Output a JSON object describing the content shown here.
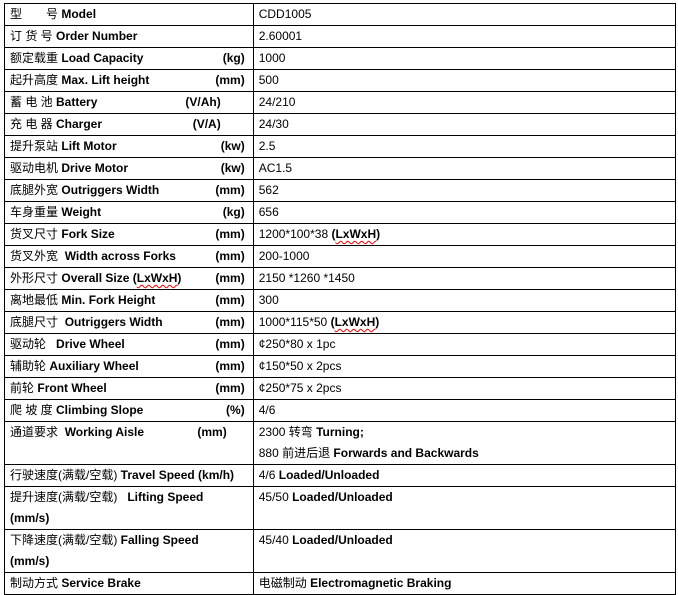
{
  "rows": [
    {
      "cn": "型　　号",
      "en": "Model",
      "unit": "",
      "value": [
        {
          "t": "CDD1005"
        }
      ]
    },
    {
      "cn": "订 货 号",
      "en": "Order Number",
      "unit": "",
      "value": [
        {
          "t": "2.60001"
        }
      ]
    },
    {
      "cn": "额定载重",
      "en": "Load Capacity",
      "unit": "(kg)",
      "value": [
        {
          "t": "1000"
        }
      ]
    },
    {
      "cn": "起升高度",
      "en": "Max. Lift height",
      "unit": "(mm)",
      "value": [
        {
          "t": "500"
        }
      ]
    },
    {
      "cn": "蓄 电 池",
      "en": "Battery",
      "unit": "(V/Ah)",
      "value": [
        {
          "t": "24/210"
        }
      ]
    },
    {
      "cn": "充 电 器",
      "en": "Charger",
      "unit": "(V/A)",
      "value": [
        {
          "t": "24/30"
        }
      ]
    },
    {
      "cn": "提升泵站",
      "en": "Lift Motor",
      "unit": "(kw)",
      "value": [
        {
          "t": "2.5"
        }
      ]
    },
    {
      "cn": "驱动电机",
      "en": "Drive Motor",
      "unit": "(kw)",
      "value": [
        {
          "t": "AC1.5"
        }
      ]
    },
    {
      "cn": "底腿外宽",
      "en": "Outriggers Width",
      "unit": "(mm)",
      "value": [
        {
          "t": "562"
        }
      ]
    },
    {
      "cn": "车身重量",
      "en": "Weight",
      "unit": "(kg)",
      "value": [
        {
          "t": "656"
        }
      ]
    },
    {
      "cn": "货叉尺寸",
      "en": "Fork Size",
      "unit": "(mm)",
      "value": [
        {
          "t": "1200*100*38 "
        },
        {
          "t": "(",
          "b": true
        },
        {
          "t": "LxWxH",
          "b": true,
          "w": true
        },
        {
          "t": ")",
          "b": true
        }
      ]
    },
    {
      "cn": "货叉外宽",
      "en": " Width across Forks",
      "unit": "(mm)",
      "value": [
        {
          "t": "200-1000"
        }
      ]
    },
    {
      "cn": "外形尺寸",
      "en": "Overall Size (",
      "en_w": "LxWxH",
      "en_after": ")",
      "unit": "(mm)",
      "value": [
        {
          "t": "2150 *1260 *1450"
        }
      ]
    },
    {
      "cn": "离地最低",
      "en": "Min. Fork Height",
      "unit": "(mm)",
      "value": [
        {
          "t": "300"
        }
      ]
    },
    {
      "cn": "底腿尺寸",
      "en": " Outriggers Width",
      "unit": "(mm)",
      "value": [
        {
          "t": "1000*115*50 "
        },
        {
          "t": "(",
          "b": true
        },
        {
          "t": "LxWxH",
          "b": true,
          "w": true
        },
        {
          "t": ")",
          "b": true
        }
      ]
    },
    {
      "cn": "驱动轮",
      "en": "  Drive Wheel",
      "unit": "(mm)",
      "value": [
        {
          "t": "¢250*80 x 1pc"
        }
      ]
    },
    {
      "cn": "辅助轮",
      "en": "Auxiliary Wheel",
      "unit": "(mm)",
      "value": [
        {
          "t": "¢150*50 x 2pcs"
        }
      ]
    },
    {
      "cn": "前轮",
      "en": "Front Wheel",
      "unit": "(mm)",
      "value": [
        {
          "t": "¢250*75 x 2pcs"
        }
      ]
    },
    {
      "cn": "爬 坡 度",
      "en": "Climbing Slope",
      "unit": "(%)",
      "value": [
        {
          "t": "4/6"
        }
      ]
    },
    {
      "cn": "通道要求",
      "en": " Working Aisle",
      "unit": "(mm)",
      "unit_pos": "mid",
      "value": [
        {
          "t": "2300 转弯 "
        },
        {
          "t": "Turning;",
          "b": true
        },
        {
          "br": true
        },
        {
          "t": "880 前进后退 "
        },
        {
          "t": "Forwards and Backwards",
          "b": true
        }
      ]
    },
    {
      "cn": "行驶速度(满载/空载)",
      "en": "Travel Speed (km/h)",
      "unit": "",
      "value": [
        {
          "t": "4/6 "
        },
        {
          "t": "Loaded/Unloaded",
          "b": true
        }
      ]
    },
    {
      "cn": "提升速度(满载/空载)",
      "en": "  Lifting Speed",
      "unit": "(mm/s)",
      "unit_pos": "below",
      "value": [
        {
          "t": "45/50 "
        },
        {
          "t": "Loaded/Unloaded",
          "b": true
        }
      ]
    },
    {
      "cn": "下降速度(满载/空载)",
      "en": "Falling Speed",
      "unit": "(mm/s)",
      "unit_pos": "below",
      "value": [
        {
          "t": "45/40 "
        },
        {
          "t": "Loaded/Unloaded",
          "b": true
        }
      ]
    },
    {
      "cn": "制动方式",
      "en": "Service Brake",
      "unit": "",
      "value": [
        {
          "t": "电磁制动 "
        },
        {
          "t": "Electromagnetic Braking",
          "b": true
        }
      ]
    }
  ]
}
